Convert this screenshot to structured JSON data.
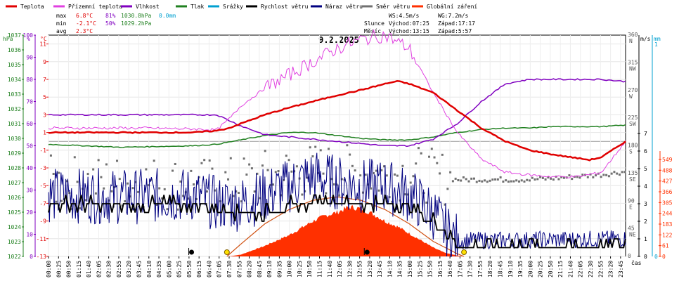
{
  "chart_data": {
    "type": "line",
    "title": "9.2.2025",
    "legend": [
      {
        "key": "temp",
        "label": "Teplota",
        "color": "#e00000"
      },
      {
        "key": "dew",
        "label": "Přízemní teplota",
        "color": "#e040e0"
      },
      {
        "key": "hum",
        "label": "Vlhkost",
        "color": "#8000c0"
      },
      {
        "key": "press",
        "label": "Tlak",
        "color": "#208020"
      },
      {
        "key": "rain",
        "label": "Srážky",
        "color": "#00a0d0"
      },
      {
        "key": "wind",
        "label": "Rychlost větru",
        "color": "#000000"
      },
      {
        "key": "gust",
        "label": "Náraz větru",
        "color": "#000080"
      },
      {
        "key": "dir",
        "label": "Směr větru",
        "color": "#707070"
      },
      {
        "key": "sol",
        "label": "Globální záření",
        "color": "#ff3000"
      }
    ],
    "stats": {
      "max_label": "max",
      "max_temp": "6.8°C",
      "max_hum": "81%",
      "max_press": "1030.8hPa",
      "max_rain": "0.0mm",
      "min_label": "min",
      "min_temp": "-2.1°C",
      "min_hum": "50%",
      "min_press": "1029.2hPa",
      "avg_label": "avg",
      "avg_temp": "2.3°C"
    },
    "astro": {
      "ws": "WS:4.5m/s",
      "wg": "WG:7.2m/s",
      "sun_label": "Slunce",
      "sunrise": "Východ:07:25",
      "sunset": "Západ:17:17",
      "moon_label": "Měsíc",
      "moonrise": "Východ:13:15",
      "moonset": "Západ:5:57"
    },
    "axes": {
      "hpa_unit": "hPa",
      "hum_unit": "%",
      "temp_unit": "°C",
      "ms_unit": "m/s",
      "mm_unit": "mm",
      "hpa": {
        "min": 1022,
        "max": 1037,
        "ticks": [
          "1037",
          "1036",
          "1035",
          "1034",
          "1033",
          "1032",
          "1031",
          "1030",
          "1029",
          "1028",
          "1027",
          "1026",
          "1025",
          "1024",
          "1023",
          "1022"
        ]
      },
      "hum": {
        "min": 0,
        "max": 100,
        "ticks": [
          "100",
          "90",
          "80",
          "70",
          "60",
          "50",
          "40",
          "30",
          "20",
          "10",
          "0"
        ]
      },
      "temp": {
        "min": -13,
        "max": 12,
        "ticks": [
          "11",
          "9",
          "7",
          "5",
          "3",
          "1",
          "-1",
          "-3",
          "-5",
          "-7",
          "-9",
          "-11",
          "-13"
        ]
      },
      "dir": {
        "min": 0,
        "max": 360,
        "ticks": [
          {
            "deg": "360",
            "lab": "N"
          },
          {
            "deg": "315",
            "lab": "NW"
          },
          {
            "deg": "270",
            "lab": "W"
          },
          {
            "deg": "225",
            "lab": "SW"
          },
          {
            "deg": "180",
            "lab": "S"
          },
          {
            "deg": "135",
            "lab": "SE"
          },
          {
            "deg": "90",
            "lab": "E"
          },
          {
            "deg": "45",
            "lab": "NE"
          },
          {
            "deg": "0",
            "lab": ""
          }
        ]
      },
      "ms": {
        "min": 0,
        "max": 10,
        "ticks": [
          "7",
          "6",
          "5",
          "4",
          "3",
          "2",
          "1",
          "0"
        ]
      },
      "mm_ticks": [
        "1",
        "0"
      ],
      "wm2": {
        "min": 0,
        "max": 610,
        "ticks": [
          "549",
          "488",
          "427",
          "366",
          "305",
          "244",
          "183",
          "122",
          "61",
          "0"
        ]
      },
      "x_label": "čas",
      "x_ticks": [
        "00:00",
        "00:25",
        "00:50",
        "01:15",
        "01:40",
        "02:05",
        "02:30",
        "02:55",
        "03:20",
        "03:45",
        "04:10",
        "04:35",
        "05:00",
        "05:25",
        "05:50",
        "06:15",
        "06:40",
        "07:05",
        "07:30",
        "07:55",
        "08:20",
        "08:45",
        "09:10",
        "09:35",
        "10:00",
        "10:25",
        "10:50",
        "11:15",
        "11:40",
        "12:05",
        "12:30",
        "12:55",
        "13:20",
        "13:45",
        "14:10",
        "14:35",
        "15:00",
        "15:25",
        "15:50",
        "16:15",
        "16:40",
        "17:05",
        "17:30",
        "17:55",
        "18:20",
        "18:45",
        "19:10",
        "19:35",
        "20:00",
        "20:25",
        "20:50",
        "21:15",
        "21:40",
        "22:05",
        "22:30",
        "22:55",
        "23:20",
        "23:45"
      ]
    },
    "series_points": {
      "temp_c": [
        [
          0,
          1.0
        ],
        [
          3,
          1.0
        ],
        [
          6,
          1.0
        ],
        [
          7,
          1.2
        ],
        [
          7.5,
          1.5
        ],
        [
          8,
          2.0
        ],
        [
          9,
          3.0
        ],
        [
          10,
          3.8
        ],
        [
          11,
          4.5
        ],
        [
          12,
          5.2
        ],
        [
          13,
          5.8
        ],
        [
          14,
          6.5
        ],
        [
          14.5,
          6.8
        ],
        [
          15,
          6.5
        ],
        [
          16,
          5.5
        ],
        [
          17,
          3.5
        ],
        [
          18,
          1.5
        ],
        [
          19,
          0.0
        ],
        [
          20,
          -1.0
        ],
        [
          21,
          -1.5
        ],
        [
          22,
          -1.9
        ],
        [
          22.5,
          -2.1
        ],
        [
          23,
          -1.8
        ],
        [
          24,
          0.0
        ]
      ],
      "dew_c": [
        [
          0,
          1.5
        ],
        [
          4,
          1.5
        ],
        [
          6,
          1.4
        ],
        [
          7,
          1.3
        ],
        [
          7.5,
          2.5
        ],
        [
          8,
          4.0
        ],
        [
          9,
          6.0
        ],
        [
          10,
          7.5
        ],
        [
          11,
          9.0
        ],
        [
          12,
          10.5
        ],
        [
          13,
          11.5
        ],
        [
          14,
          12.0
        ],
        [
          15,
          10.5
        ],
        [
          16,
          5.5
        ],
        [
          17,
          1.0
        ],
        [
          18,
          -2.0
        ],
        [
          19,
          -3.5
        ],
        [
          20,
          -3.8
        ],
        [
          21,
          -4.0
        ],
        [
          22,
          -4.0
        ],
        [
          23,
          -3.5
        ],
        [
          24,
          0.0
        ]
      ],
      "hum_pct": [
        [
          0,
          64
        ],
        [
          7,
          64
        ],
        [
          8,
          59
        ],
        [
          9,
          55
        ],
        [
          10,
          54
        ],
        [
          12,
          52
        ],
        [
          13,
          51
        ],
        [
          14,
          50
        ],
        [
          15,
          50
        ],
        [
          16,
          53
        ],
        [
          17,
          60
        ],
        [
          18,
          70
        ],
        [
          19,
          78
        ],
        [
          20,
          80
        ],
        [
          21,
          80
        ],
        [
          22,
          80
        ],
        [
          23,
          80
        ],
        [
          24,
          79
        ]
      ],
      "press_hpa": [
        [
          0,
          1029.6
        ],
        [
          3,
          1029.4
        ],
        [
          6,
          1029.5
        ],
        [
          7,
          1029.6
        ],
        [
          8,
          1029.9
        ],
        [
          9,
          1030.2
        ],
        [
          10,
          1030.4
        ],
        [
          11,
          1030.4
        ],
        [
          12,
          1030.2
        ],
        [
          13,
          1030.0
        ],
        [
          14,
          1029.9
        ],
        [
          15,
          1029.9
        ],
        [
          16,
          1030.1
        ],
        [
          17,
          1030.4
        ],
        [
          18,
          1030.6
        ],
        [
          19,
          1030.7
        ],
        [
          20,
          1030.7
        ],
        [
          21,
          1030.8
        ],
        [
          22,
          1030.8
        ],
        [
          23,
          1030.8
        ],
        [
          24,
          1030.9
        ]
      ],
      "wind_ms": [
        [
          0,
          3.0
        ],
        [
          3,
          2.9
        ],
        [
          6,
          3.0
        ],
        [
          7,
          2.8
        ],
        [
          8,
          2.5
        ],
        [
          9,
          2.5
        ],
        [
          10,
          2.9
        ],
        [
          11,
          3.1
        ],
        [
          12,
          3.1
        ],
        [
          13,
          3.0
        ],
        [
          14,
          3.1
        ],
        [
          15,
          2.8
        ],
        [
          16,
          2.0
        ],
        [
          16.5,
          1.4
        ],
        [
          17,
          0.6
        ],
        [
          24,
          0.7
        ]
      ],
      "gust_ms": [
        [
          0,
          3.5
        ],
        [
          3,
          3.4
        ],
        [
          6,
          3.5
        ],
        [
          7,
          3.0
        ],
        [
          8,
          3.0
        ],
        [
          9,
          3.5
        ],
        [
          10,
          4.0
        ],
        [
          11,
          4.6
        ],
        [
          12,
          4.2
        ],
        [
          13,
          4.0
        ],
        [
          14,
          4.0
        ],
        [
          15,
          3.5
        ],
        [
          16,
          2.5
        ],
        [
          16.5,
          1.5
        ],
        [
          17,
          0.9
        ],
        [
          24,
          1.0
        ]
      ],
      "dir_deg": [
        [
          0,
          120
        ],
        [
          4,
          120
        ],
        [
          6,
          118
        ],
        [
          7,
          115
        ],
        [
          8,
          120
        ],
        [
          9,
          130
        ],
        [
          10,
          135
        ],
        [
          11,
          140
        ],
        [
          12,
          140
        ],
        [
          13,
          135
        ],
        [
          14,
          132
        ],
        [
          15,
          138
        ],
        [
          16,
          130
        ],
        [
          17,
          125
        ],
        [
          18,
          125
        ],
        [
          19,
          125
        ],
        [
          20,
          125
        ],
        [
          21,
          127
        ],
        [
          22,
          130
        ],
        [
          23,
          133
        ],
        [
          24,
          138
        ]
      ],
      "sol_wm2": [
        [
          0,
          0
        ],
        [
          7.5,
          0
        ],
        [
          8,
          10
        ],
        [
          9,
          60
        ],
        [
          10,
          120
        ],
        [
          11,
          200
        ],
        [
          11.5,
          230
        ],
        [
          12,
          250
        ],
        [
          12.5,
          280
        ],
        [
          13,
          270
        ],
        [
          13.5,
          240
        ],
        [
          14,
          200
        ],
        [
          14.5,
          170
        ],
        [
          15,
          130
        ],
        [
          15.5,
          90
        ],
        [
          16,
          50
        ],
        [
          16.5,
          20
        ],
        [
          17,
          5
        ],
        [
          17.3,
          0
        ],
        [
          24,
          0
        ]
      ],
      "sol_theory_wm2": [
        [
          7.42,
          0
        ],
        [
          8,
          70
        ],
        [
          9,
          185
        ],
        [
          10,
          265
        ],
        [
          11,
          318
        ],
        [
          12,
          337
        ],
        [
          13,
          318
        ],
        [
          14,
          265
        ],
        [
          15,
          185
        ],
        [
          16,
          85
        ],
        [
          17,
          15
        ],
        [
          17.28,
          0
        ]
      ]
    },
    "markers": {
      "sunrise_h": 7.42,
      "sunset_h": 17.28,
      "moonset_h": 5.95,
      "moonrise_h": 13.25
    }
  }
}
